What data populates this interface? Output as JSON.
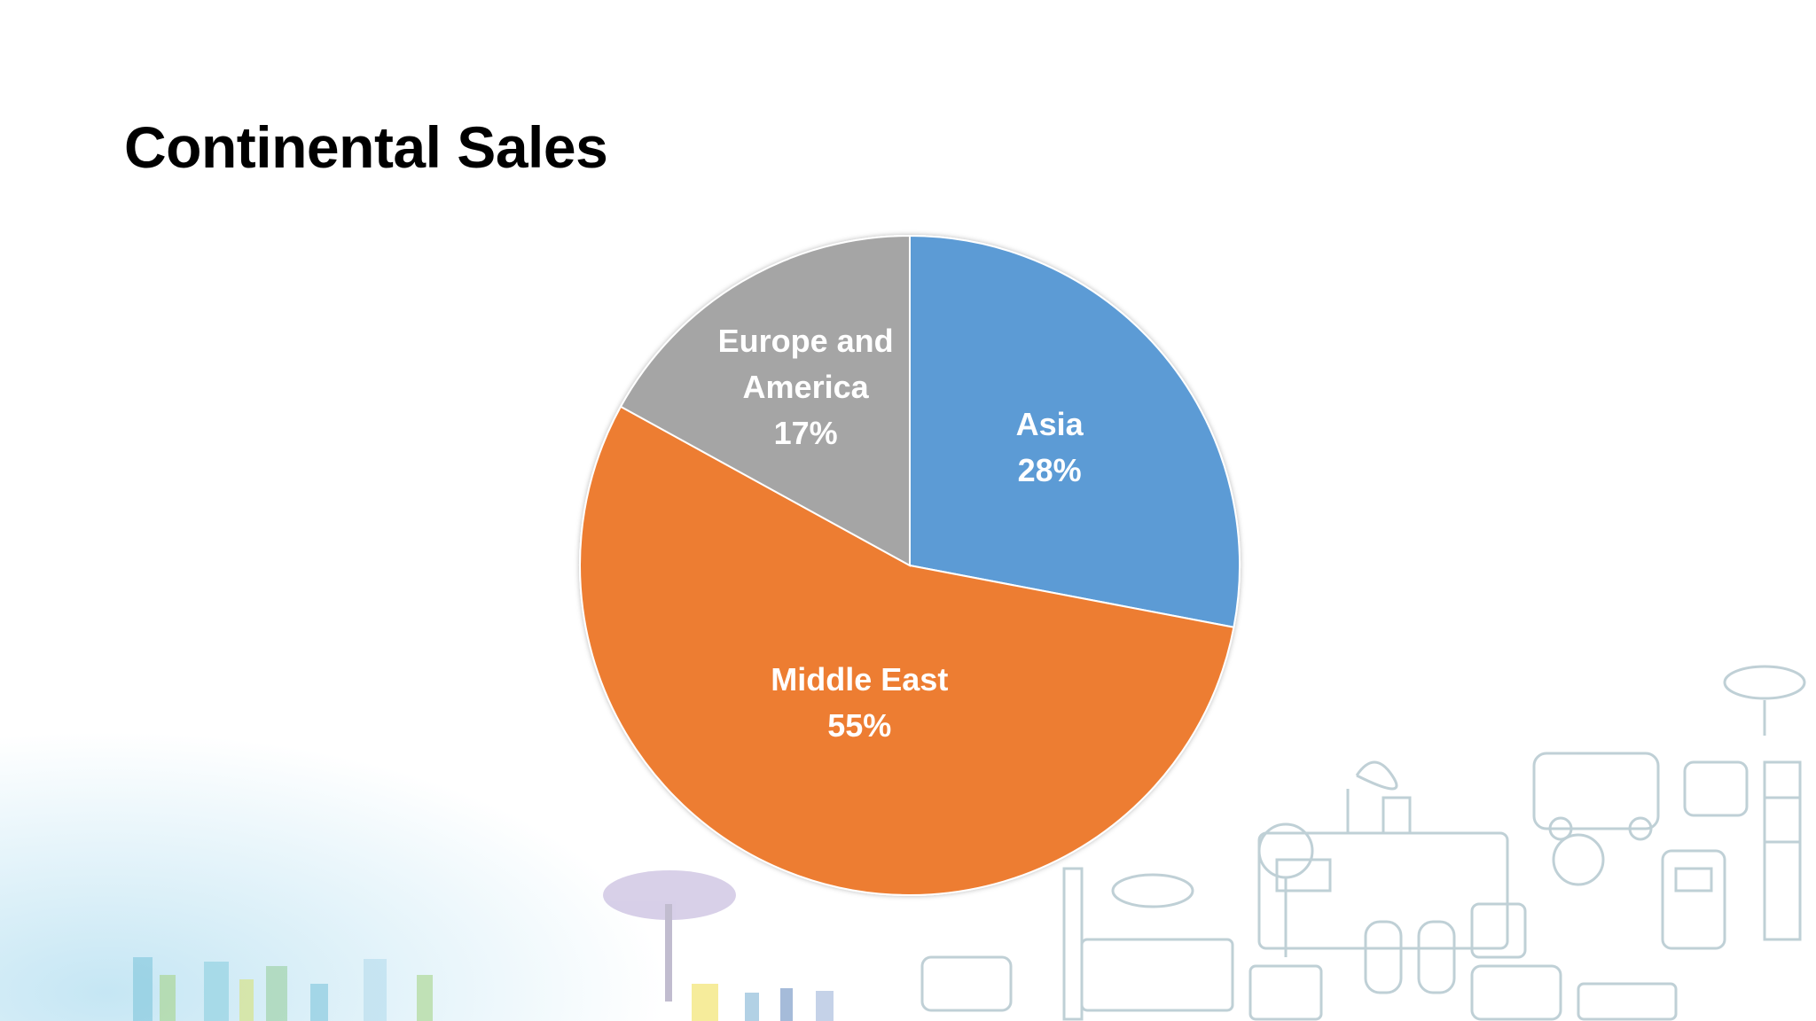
{
  "slide": {
    "title": "Continental Sales"
  },
  "colors": {
    "asia": "#5b9bd5",
    "middle_east": "#ed7d31",
    "europe_america": "#a5a5a5",
    "label_text": "#ffffff"
  },
  "chart_data": {
    "type": "pie",
    "title": "",
    "start_angle_deg": 0,
    "direction": "clockwise",
    "slices": [
      {
        "label_lines": [
          "Asia",
          "28%"
        ],
        "value": 28,
        "color": "#5b9bd5"
      },
      {
        "label_lines": [
          "Middle East",
          "55%"
        ],
        "value": 55,
        "color": "#ed7d31"
      },
      {
        "label_lines": [
          "Europe and",
          "America",
          "17%"
        ],
        "value": 17,
        "color": "#a5a5a5"
      }
    ]
  }
}
